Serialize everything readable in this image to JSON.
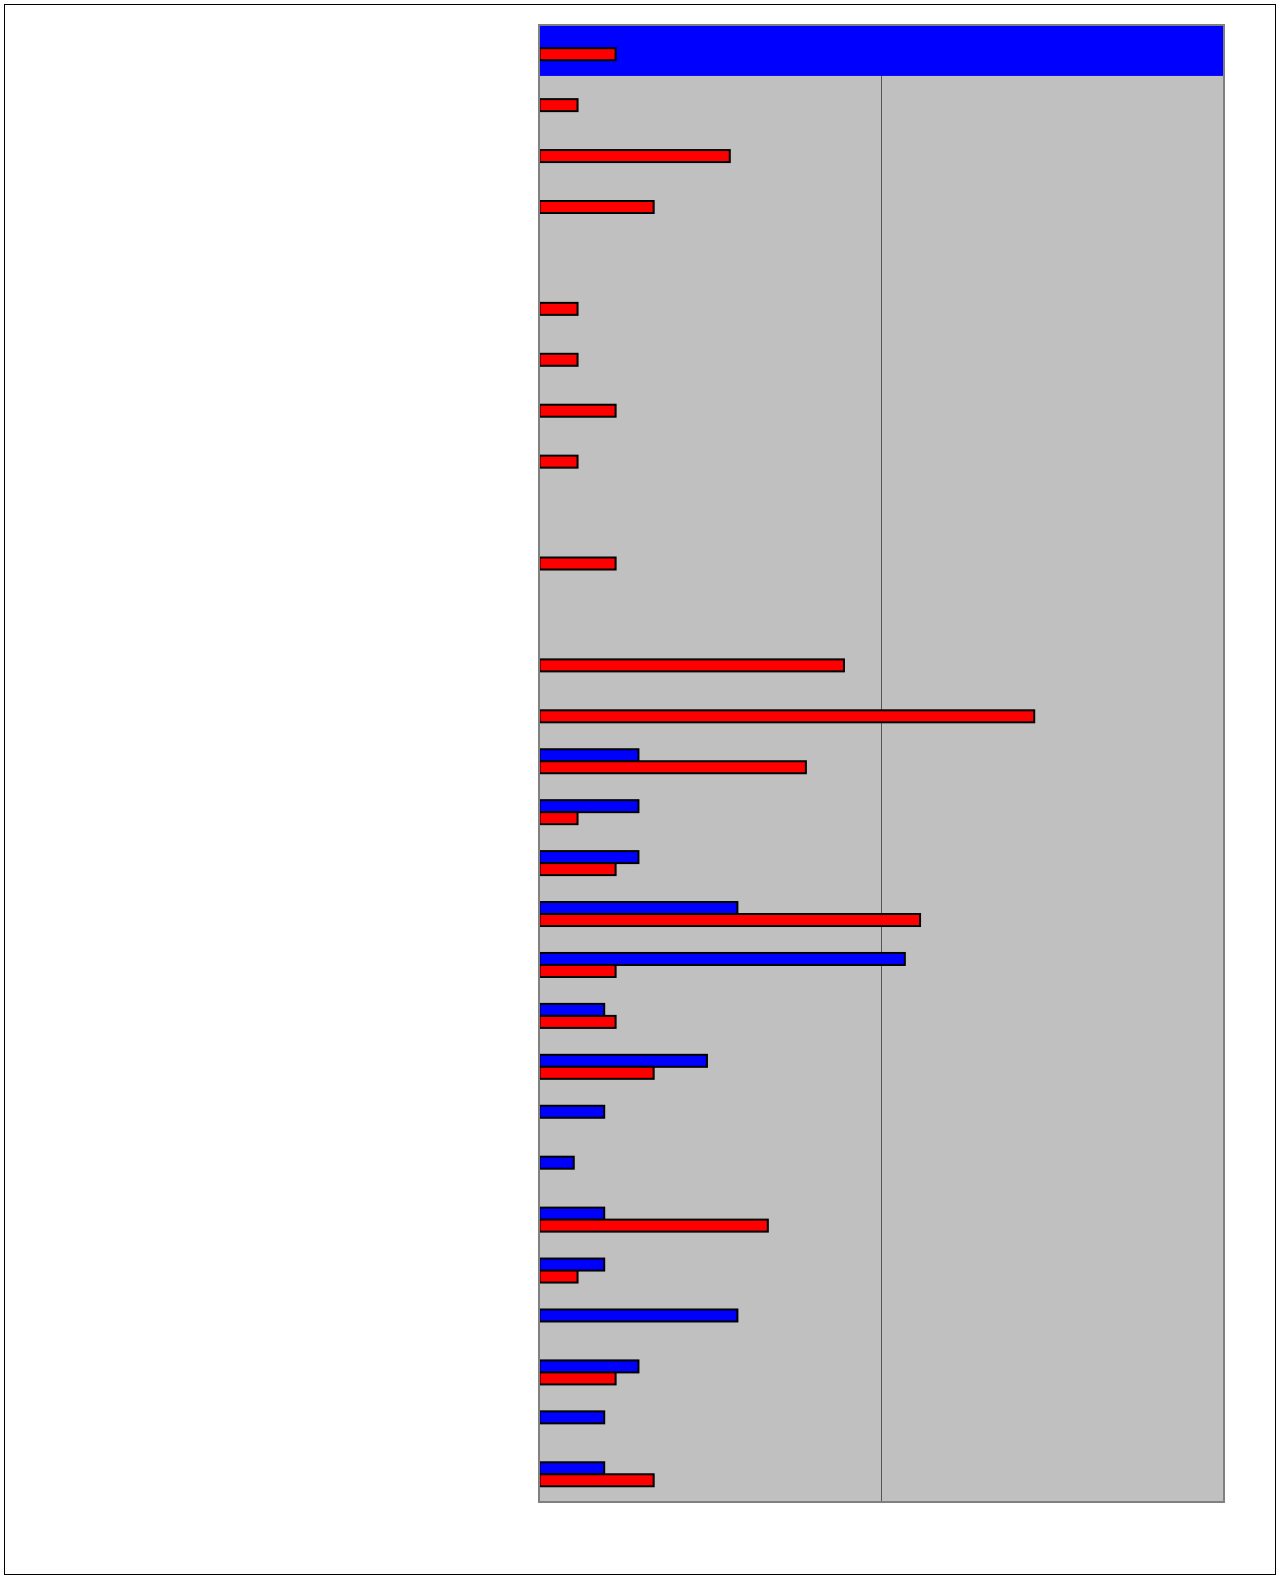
{
  "chart_data": {
    "type": "bar",
    "orientation": "horizontal",
    "title": "",
    "xlabel": "",
    "ylabel": "",
    "xlim": [
      0,
      18
    ],
    "grid": "vertical",
    "legend": "none",
    "plot_background": "#c0c0c0",
    "categories": [
      "",
      "",
      "",
      "",
      "",
      "",
      "",
      "",
      "",
      "",
      "",
      "",
      "",
      "",
      "",
      "",
      "",
      "",
      "",
      "",
      "",
      "",
      "",
      "",
      "",
      "",
      "",
      "",
      ""
    ],
    "series": [
      {
        "color": "#0000ff",
        "values": [
          18,
          0,
          0,
          0,
          0,
          0,
          0,
          0,
          0,
          0,
          0,
          0,
          0,
          0,
          2.6,
          2.6,
          2.6,
          5.2,
          9.6,
          1.7,
          4.4,
          1.7,
          0.9,
          1.7,
          1.7,
          5.2,
          2.6,
          1.7,
          1.7
        ]
      },
      {
        "color": "#ff0000",
        "values": [
          2,
          1,
          5,
          3,
          0,
          1,
          1,
          2,
          1,
          0,
          2,
          0,
          8,
          13,
          7,
          1,
          2,
          10,
          2,
          2,
          3,
          0,
          0,
          6,
          1,
          0,
          2,
          0,
          3
        ]
      }
    ]
  }
}
